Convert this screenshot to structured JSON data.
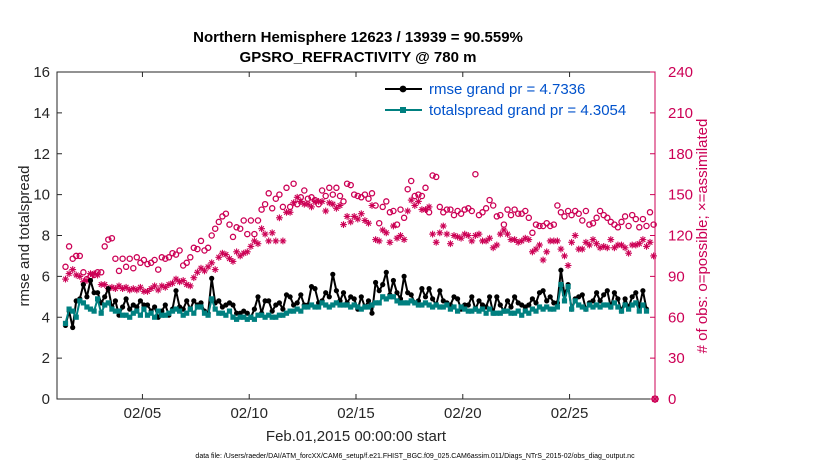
{
  "chart_data": {
    "type": "line",
    "title_line1": "Northern Hemisphere 12623 / 13939 = 90.559%",
    "title_line2": "GPSRO_REFRACTIVITY @ 780 m",
    "xlabel": "Feb.01,2015 00:00:00 start",
    "ylabel": "rmse and totalspread",
    "ylabel_right": "# of obs: o=possible; ×=assimilated",
    "footnote": "data file: /Users/raeder/DAI/ATM_forcXX/CAM6_setup/f.e21.FHIST_BGC.f09_025.CAM6assim.011/Diags_NTrS_2015-02/obs_diag_output.nc",
    "xlim": [
      1,
      29
    ],
    "ylim": [
      0,
      16
    ],
    "ylim_right": [
      0,
      240
    ],
    "xticks": [
      5,
      10,
      15,
      20,
      25
    ],
    "xtick_labels": [
      "02/05",
      "02/10",
      "02/15",
      "02/20",
      "02/25"
    ],
    "yticks": [
      "0",
      "2",
      "4",
      "6",
      "8",
      "10",
      "12",
      "14",
      "16"
    ],
    "yticks_right": [
      "0",
      "30",
      "60",
      "90",
      "120",
      "150",
      "180",
      "210",
      "240"
    ],
    "colors": {
      "rmse": "#000000",
      "spread": "#008080",
      "obs": "#cc0055",
      "legend_text": "#0052cc"
    },
    "series": [
      {
        "name": "rmse grand pr = 4.7336",
        "values": [
          3.6,
          4.3,
          3.5,
          4.8,
          4.9,
          5.6,
          5.0,
          5.8,
          5.2,
          5.2,
          4.7,
          5.0,
          5.4,
          4.5,
          4.8,
          4.1,
          4.5,
          4.9,
          4.4,
          4.6,
          4.5,
          4.8,
          4.6,
          4.6,
          4.3,
          4.5,
          4.0,
          4.3,
          4.6,
          4.1,
          4.4,
          5.3,
          4.5,
          4.4,
          4.8,
          4.4,
          4.8,
          4.6,
          4.7,
          4.3,
          4.2,
          5.9,
          4.7,
          4.8,
          4.5,
          4.6,
          4.7,
          4.6,
          4.2,
          4.2,
          4.3,
          4.2,
          4.0,
          4.4,
          5.0,
          4.2,
          4.8,
          4.8,
          4.3,
          4.6,
          4.7,
          4.4,
          5.1,
          5.0,
          4.6,
          4.7,
          5.1,
          4.6,
          4.6,
          5.5,
          5.4,
          4.7,
          4.8,
          5.2,
          5.0,
          6.1,
          5.3,
          4.8,
          5.2,
          4.7,
          5.0,
          4.9,
          4.4,
          5.0,
          4.5,
          4.8,
          4.2,
          5.7,
          5.3,
          5.6,
          6.2,
          5.1,
          5.8,
          5.2,
          4.9,
          6.0,
          5.2,
          5.1,
          4.7,
          4.8,
          5.4,
          5.0,
          5.4,
          4.9,
          4.6,
          5.3,
          4.8,
          4.7,
          4.6,
          5.0,
          4.9,
          4.4,
          4.6,
          4.6,
          5.0,
          4.4,
          4.8,
          4.6,
          4.5,
          5.0,
          4.2,
          5.0,
          4.6,
          4.3,
          4.8,
          4.5,
          5.0,
          4.7,
          4.6,
          4.5,
          4.6,
          4.9,
          4.7,
          5.2,
          5.3,
          4.8,
          5.0,
          4.7,
          4.7,
          6.3,
          5.1,
          5.6,
          4.4,
          4.9,
          5.0,
          5.1,
          4.4,
          4.7,
          4.8,
          5.2,
          4.8,
          5.1,
          5.3,
          4.5,
          5.2,
          4.9,
          4.3,
          4.9,
          4.5,
          5.0,
          5.2,
          4.5,
          5.3,
          4.4
        ],
        "color": "#000000"
      },
      {
        "name": "totalspread grand pr = 4.3054",
        "values": [
          3.7,
          4.4,
          4.3,
          4.0,
          4.8,
          4.7,
          4.5,
          4.4,
          4.3,
          4.9,
          4.2,
          4.6,
          4.7,
          4.4,
          4.3,
          4.3,
          4.1,
          4.1,
          4.0,
          4.2,
          4.3,
          4.1,
          4.4,
          4.1,
          4.2,
          4.0,
          4.3,
          4.1,
          4.1,
          4.2,
          4.3,
          4.4,
          4.3,
          4.1,
          4.2,
          4.4,
          4.2,
          4.5,
          4.5,
          4.2,
          4.1,
          4.9,
          4.4,
          4.2,
          4.2,
          4.1,
          4.3,
          4.0,
          3.9,
          4.0,
          4.0,
          3.9,
          4.0,
          3.9,
          4.1,
          4.1,
          4.0,
          4.1,
          4.0,
          4.0,
          4.1,
          4.1,
          4.2,
          4.3,
          4.3,
          4.4,
          4.3,
          4.5,
          4.5,
          4.6,
          4.5,
          4.5,
          4.7,
          4.6,
          4.5,
          4.6,
          4.7,
          4.6,
          4.6,
          4.6,
          4.5,
          4.6,
          4.5,
          4.4,
          4.5,
          4.5,
          4.6,
          4.7,
          4.7,
          5.0,
          4.9,
          5.0,
          5.0,
          4.8,
          4.7,
          4.7,
          4.7,
          4.8,
          4.7,
          4.6,
          4.6,
          4.7,
          4.6,
          4.5,
          4.6,
          4.5,
          4.5,
          4.6,
          4.4,
          4.5,
          4.3,
          4.5,
          4.4,
          4.3,
          4.3,
          4.4,
          4.3,
          4.4,
          4.2,
          4.4,
          4.2,
          4.2,
          4.2,
          4.3,
          4.3,
          4.2,
          4.2,
          4.3,
          4.1,
          4.3,
          4.2,
          4.4,
          4.3,
          4.5,
          4.4,
          4.5,
          4.4,
          4.4,
          4.5,
          5.6,
          4.8,
          5.5,
          4.4,
          4.8,
          4.6,
          4.5,
          4.4,
          4.6,
          4.5,
          4.6,
          4.5,
          4.6,
          4.6,
          4.5,
          4.7,
          4.5,
          4.3,
          4.6,
          4.4,
          4.6,
          4.7,
          4.3,
          4.6,
          4.3
        ],
        "color": "#008080"
      },
      {
        "name": "possible obs",
        "axis": "right",
        "marker": "o",
        "values": [
          97,
          112,
          103,
          105,
          105,
          93,
          88,
          90,
          91,
          93,
          93,
          112,
          117,
          118,
          103,
          94,
          103,
          97,
          103,
          96,
          104,
          100,
          102,
          99,
          100,
          102,
          95,
          104,
          103,
          104,
          107,
          106,
          109,
          98,
          100,
          104,
          111,
          110,
          116,
          109,
          111,
          120,
          125,
          130,
          134,
          136,
          128,
          119,
          126,
          125,
          131,
          121,
          131,
          121,
          131,
          139,
          143,
          151,
          140,
          147,
          150,
          141,
          155,
          141,
          158,
          143,
          148,
          153,
          147,
          148,
          146,
          143,
          153,
          149,
          155,
          150,
          155,
          149,
          145,
          158,
          157,
          150,
          149,
          148,
          150,
          147,
          151,
          142,
          129,
          141,
          145,
          137,
          138,
          128,
          139,
          133,
          154,
          160,
          149,
          150,
          149,
          155,
          137,
          164,
          163,
          141,
          137,
          139,
          139,
          135,
          138,
          136,
          139,
          140,
          138,
          165,
          135,
          137,
          140,
          146,
          142,
          134,
          135,
          128,
          139,
          135,
          139,
          136,
          136,
          138,
          133,
          122,
          128,
          127,
          127,
          129,
          127,
          128,
          142,
          137,
          134,
          138,
          135,
          138,
          136,
          131,
          138,
          128,
          129,
          133,
          138,
          135,
          133,
          130,
          128,
          126,
          130,
          134,
          127,
          135,
          132,
          126,
          132,
          127,
          137,
          128
        ],
        "color": "#cc0055"
      },
      {
        "name": "assimilated obs",
        "axis": "right",
        "marker": "*",
        "values": [
          88,
          92,
          95,
          91,
          90,
          86,
          87,
          92,
          92,
          91,
          84,
          84,
          81,
          82,
          81,
          83,
          81,
          82,
          80,
          81,
          80,
          82,
          79,
          79,
          81,
          83,
          80,
          83,
          82,
          84,
          85,
          88,
          86,
          87,
          84,
          83,
          89,
          93,
          96,
          94,
          97,
          100,
          95,
          104,
          107,
          106,
          103,
          101,
          108,
          105,
          107,
          108,
          112,
          116,
          114,
          125,
          121,
          116,
          122,
          116,
          133,
          116,
          137,
          137,
          144,
          148,
          145,
          143,
          143,
          141,
          145,
          145,
          145,
          138,
          144,
          143,
          140,
          142,
          128,
          134,
          130,
          134,
          132,
          136,
          131,
          129,
          142,
          117,
          116,
          124,
          122,
          115,
          127,
          118,
          120,
          117,
          138,
          146,
          142,
          145,
          139,
          139,
          141,
          121,
          115,
          122,
          127,
          121,
          114,
          120,
          119,
          118,
          121,
          120,
          116,
          120,
          121,
          116,
          116,
          118,
          111,
          113,
          121,
          124,
          121,
          117,
          117,
          115,
          116,
          118,
          117,
          108,
          110,
          113,
          102,
          108,
          116,
          116,
          116,
          110,
          105,
          98,
          115,
          120,
          110,
          110,
          115,
          113,
          117,
          114,
          111,
          112,
          111,
          117,
          111,
          113,
          113,
          111,
          107,
          113,
          113,
          114,
          117,
          112,
          115,
          105
        ],
        "color": "#cc0055"
      }
    ],
    "legend_location": "top-right"
  }
}
